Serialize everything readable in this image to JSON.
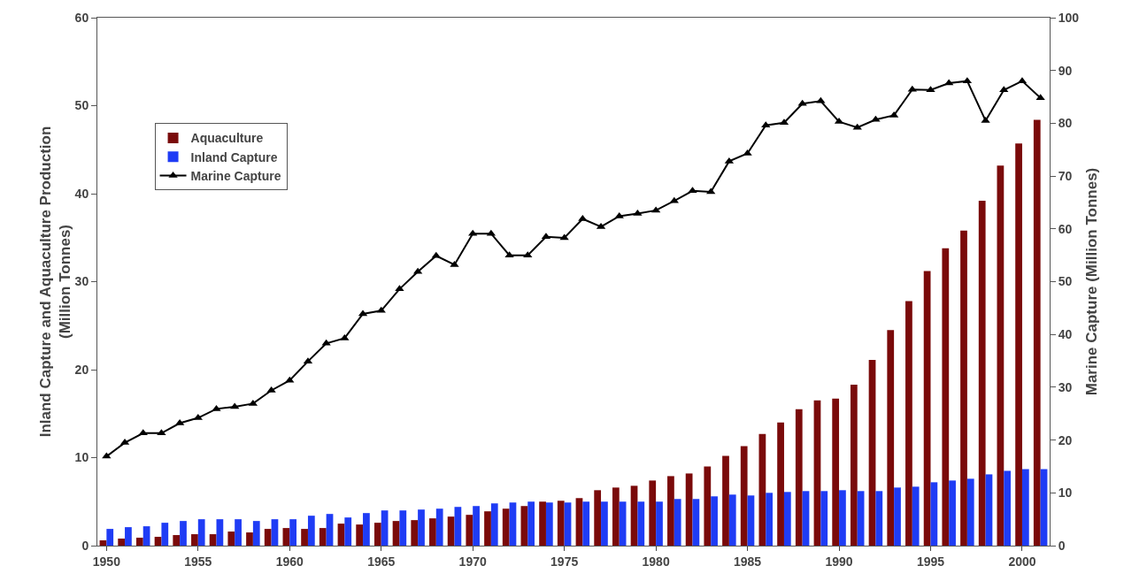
{
  "chart_data": {
    "type": "bar",
    "ylabel": "Inland Capture and Aquaculture Production\n(Million Tonnes)",
    "y2label": "Marine Capture (Million Tonnes)",
    "categories": [
      "1950",
      null,
      null,
      null,
      null,
      "1955",
      null,
      null,
      null,
      null,
      "1960",
      null,
      null,
      null,
      null,
      "1965",
      null,
      null,
      null,
      null,
      "1970",
      null,
      null,
      null,
      null,
      "1975",
      null,
      null,
      null,
      null,
      "1980",
      null,
      null,
      null,
      null,
      "1985",
      null,
      null,
      null,
      null,
      "1990",
      null,
      null,
      null,
      null,
      "1995",
      null,
      null,
      null,
      null,
      "2000",
      null
    ],
    "series": [
      {
        "name": "Aquaculture",
        "color": "#7a0a0a",
        "values": [
          0.6,
          0.8,
          0.9,
          1.0,
          1.2,
          1.3,
          1.3,
          1.6,
          1.5,
          1.9,
          2.0,
          1.9,
          2.0,
          2.5,
          2.4,
          2.6,
          2.8,
          2.9,
          3.1,
          3.3,
          3.5,
          3.9,
          4.2,
          4.5,
          5.0,
          5.1,
          5.4,
          6.3,
          6.6,
          6.8,
          7.4,
          7.9,
          8.2,
          9.0,
          10.2,
          11.3,
          12.7,
          14.0,
          15.5,
          16.5,
          16.7,
          18.3,
          21.1,
          24.5,
          27.8,
          31.2,
          33.8,
          35.8,
          39.2,
          43.2,
          45.7,
          48.4
        ]
      },
      {
        "name": "Inland Capture",
        "color": "#1f3cf5",
        "values": [
          1.9,
          2.1,
          2.2,
          2.6,
          2.8,
          3.0,
          3.0,
          3.0,
          2.8,
          3.0,
          3.0,
          3.4,
          3.6,
          3.2,
          3.7,
          4.0,
          4.0,
          4.1,
          4.2,
          4.4,
          4.5,
          4.8,
          4.9,
          5.0,
          4.9,
          4.9,
          5.0,
          5.0,
          5.0,
          5.0,
          5.0,
          5.3,
          5.3,
          5.6,
          5.8,
          5.7,
          6.0,
          6.1,
          6.2,
          6.2,
          6.3,
          6.2,
          6.2,
          6.6,
          6.7,
          7.2,
          7.4,
          7.6,
          8.1,
          8.5,
          8.7,
          8.7
        ]
      },
      {
        "name": "Marine Capture",
        "type": "line",
        "axis": "y2",
        "color": "#000000",
        "values": [
          16.9,
          19.5,
          21.3,
          21.3,
          23.2,
          24.2,
          25.9,
          26.3,
          26.9,
          29.4,
          31.3,
          34.9,
          38.3,
          39.3,
          43.9,
          44.5,
          48.6,
          51.9,
          54.9,
          53.2,
          59.1,
          59.1,
          55.0,
          55.0,
          58.5,
          58.3,
          61.9,
          60.4,
          62.4,
          62.9,
          63.5,
          65.3,
          67.2,
          67.0,
          72.8,
          74.3,
          79.6,
          80.1,
          83.7,
          84.2,
          80.3,
          79.2,
          80.7,
          81.5,
          86.4,
          86.3,
          87.6,
          88.0,
          80.5,
          86.3,
          88.0,
          84.8
        ]
      }
    ],
    "ylim": [
      0,
      60
    ],
    "yticks": [
      0,
      10,
      20,
      30,
      40,
      50,
      60
    ],
    "y2lim": [
      0,
      100
    ],
    "y2ticks": [
      0,
      10,
      20,
      30,
      40,
      50,
      60,
      70,
      80,
      90,
      100
    ],
    "grid": false,
    "legend": "top left",
    "marker": "triangle",
    "line_style": "solid"
  }
}
